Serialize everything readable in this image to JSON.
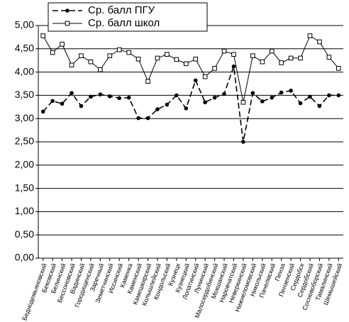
{
  "chart_data": {
    "type": "line",
    "categories": [
      "Беднодемьяновский",
      "Бековский",
      "Белинский",
      "Бессоновский",
      "Вадинский",
      "Городищенский",
      "Заречный",
      "Земетчинский",
      "Иссинский",
      "Каменка",
      "Каменский",
      "Камешкирский",
      "Колышлейский",
      "Кондольский",
      "Кузнецк",
      "Кузнецкий",
      "Лопатинский",
      "Лунинский",
      "Малосердобинский",
      "Мокшанский",
      "Наровчатский",
      "Неверкинский",
      "Нижнеломовский",
      "Никольский",
      "Пачелмский",
      "Пенза",
      "Пензенский",
      "Сердобск",
      "Сердобский",
      "Сосновоборский",
      "Тамалинский",
      "Шемышейский"
    ],
    "series": [
      {
        "name": "Ср. балл ПГУ",
        "color": "#000000",
        "marker": "circle",
        "dashed": true,
        "values": [
          3.15,
          3.38,
          3.32,
          3.55,
          3.27,
          3.47,
          3.52,
          3.48,
          3.44,
          3.45,
          3.01,
          3.01,
          3.2,
          3.3,
          3.5,
          3.22,
          3.82,
          3.35,
          3.45,
          3.53,
          4.12,
          2.5,
          3.55,
          3.37,
          3.45,
          3.56,
          3.6,
          3.33,
          3.47,
          3.27,
          3.5,
          3.5
        ]
      },
      {
        "name": "Ср. балл школ",
        "color": "#000000",
        "marker": "square",
        "dashed": false,
        "values": [
          4.78,
          4.42,
          4.6,
          4.15,
          4.35,
          4.22,
          4.05,
          4.35,
          4.48,
          4.42,
          4.28,
          3.8,
          4.3,
          4.38,
          4.27,
          4.18,
          4.28,
          3.9,
          4.08,
          4.45,
          4.38,
          3.35,
          4.35,
          4.22,
          4.45,
          4.2,
          4.3,
          4.3,
          4.78,
          4.65,
          4.32,
          4.08
        ]
      }
    ],
    "ylim": [
      0,
      5
    ],
    "yticks": [
      {
        "value": 0,
        "label": "0,00"
      },
      {
        "value": 0.5,
        "label": "0,50"
      },
      {
        "value": 1,
        "label": "1,00"
      },
      {
        "value": 1.5,
        "label": "1,50"
      },
      {
        "value": 2,
        "label": "2,00"
      },
      {
        "value": 2.5,
        "label": "2,50"
      },
      {
        "value": 3,
        "label": "3,00"
      },
      {
        "value": 3.5,
        "label": "3,50"
      },
      {
        "value": 4,
        "label": "4,00"
      },
      {
        "value": 4.5,
        "label": "4,50"
      },
      {
        "value": 5,
        "label": "5,00"
      }
    ],
    "grid": true,
    "legend": "top"
  }
}
